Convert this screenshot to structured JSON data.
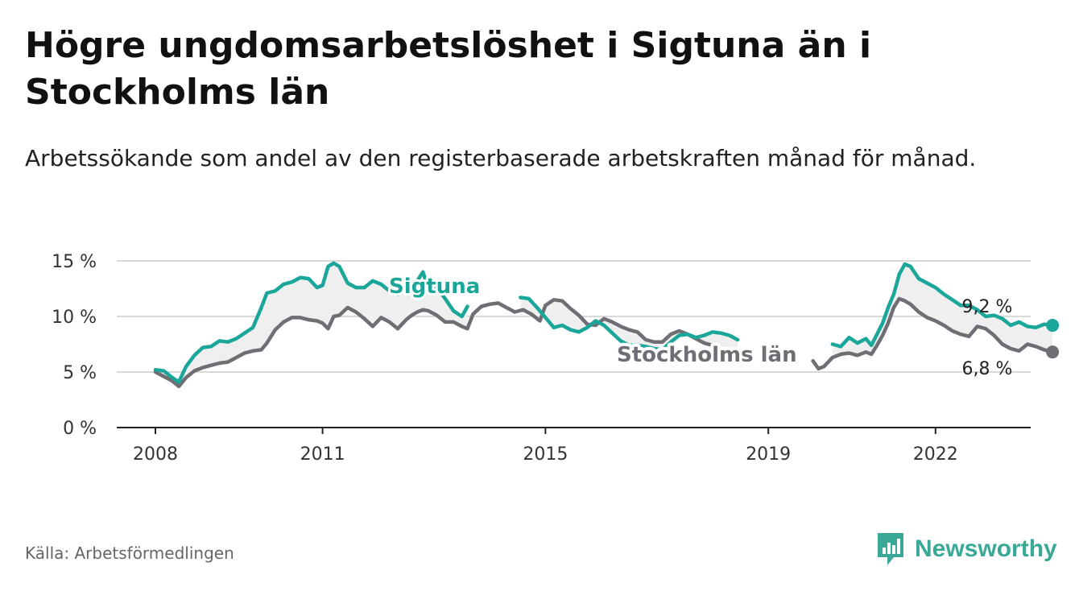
{
  "title": "Högre ungdomsarbetslöshet i Sigtuna än i Stockholms län",
  "subtitle": "Arbetssökande som andel av den registerbaserade arbetskraften månad för månad.",
  "source": "Källa: Arbetsförmedlingen",
  "brand": {
    "name": "Newsworthy",
    "icon": "newsworthy-logo-icon",
    "color": "#3aa896"
  },
  "colors": {
    "sigtuna": "#1aa79a",
    "stockholm": "#6f6e74",
    "fill": "#efefef",
    "grid": "#d9d9d9"
  },
  "chart_data": {
    "type": "line",
    "title": "Högre ungdomsarbetslöshet i Sigtuna än i Stockholms län",
    "ylabel": "",
    "xlabel": "",
    "ylim": [
      0,
      15
    ],
    "xlim": [
      2007.5,
      2024.0
    ],
    "grid": true,
    "yticks": [
      0,
      5,
      10,
      15
    ],
    "ytick_labels": [
      "0 %",
      "5 %",
      "10 %",
      "15 %"
    ],
    "xticks": [
      2008,
      2011,
      2015,
      2019,
      2022
    ],
    "xtick_labels": [
      "2008",
      "2011",
      "2015",
      "2019",
      "2022"
    ],
    "series": [
      {
        "name": "Sigtuna",
        "label": "Sigtuna",
        "end_label": "9,2 %",
        "points": [
          [
            2008.0,
            5.2
          ],
          [
            2008.15,
            5.1
          ],
          [
            2008.3,
            4.5
          ],
          [
            2008.42,
            4.1
          ],
          [
            2008.55,
            5.5
          ],
          [
            2008.7,
            6.5
          ],
          [
            2008.85,
            7.2
          ],
          [
            2009.0,
            7.3
          ],
          [
            2009.15,
            7.8
          ],
          [
            2009.3,
            7.7
          ],
          [
            2009.45,
            8.0
          ],
          [
            2009.6,
            8.5
          ],
          [
            2009.75,
            9.0
          ],
          [
            2009.9,
            10.8
          ],
          [
            2010.0,
            12.1
          ],
          [
            2010.15,
            12.3
          ],
          [
            2010.3,
            12.9
          ],
          [
            2010.45,
            13.1
          ],
          [
            2010.6,
            13.5
          ],
          [
            2010.75,
            13.4
          ],
          [
            2010.9,
            12.6
          ],
          [
            2011.0,
            12.8
          ],
          [
            2011.1,
            14.5
          ],
          [
            2011.2,
            14.8
          ],
          [
            2011.3,
            14.5
          ],
          [
            2011.45,
            13.0
          ],
          [
            2011.6,
            12.6
          ],
          [
            2011.75,
            12.6
          ],
          [
            2011.9,
            13.2
          ],
          [
            2012.05,
            12.9
          ],
          [
            2012.2,
            12.3
          ],
          [
            2012.35,
            12.0
          ],
          [
            2012.5,
            12.5
          ],
          [
            2012.6,
            13.0
          ],
          [
            2012.7,
            13.2
          ],
          [
            2012.8,
            14.0
          ],
          [
            2012.9,
            12.5
          ],
          [
            2013.05,
            12.6
          ],
          [
            2013.2,
            11.6
          ],
          [
            2013.35,
            10.5
          ],
          [
            2013.5,
            10.0
          ],
          [
            2013.6,
            10.9
          ]
        ],
        "points_b": [
          [
            2014.55,
            11.7
          ],
          [
            2014.7,
            11.6
          ],
          [
            2014.85,
            10.8
          ],
          [
            2015.0,
            9.9
          ],
          [
            2015.15,
            9.0
          ],
          [
            2015.3,
            9.2
          ],
          [
            2015.45,
            8.8
          ],
          [
            2015.6,
            8.6
          ],
          [
            2015.75,
            9.0
          ],
          [
            2015.9,
            9.6
          ],
          [
            2016.05,
            9.2
          ],
          [
            2016.2,
            8.5
          ],
          [
            2016.35,
            7.8
          ],
          [
            2016.5,
            7.4
          ],
          [
            2016.65,
            7.4
          ],
          [
            2016.8,
            7.3
          ],
          [
            2016.95,
            7.1
          ],
          [
            2017.1,
            7.0
          ],
          [
            2017.25,
            7.7
          ],
          [
            2017.4,
            8.3
          ],
          [
            2017.55,
            8.4
          ],
          [
            2017.7,
            8.1
          ],
          [
            2017.85,
            8.3
          ],
          [
            2018.0,
            8.6
          ],
          [
            2018.15,
            8.5
          ],
          [
            2018.3,
            8.3
          ],
          [
            2018.45,
            7.9
          ]
        ],
        "points_c": [
          [
            2020.15,
            7.5
          ],
          [
            2020.3,
            7.3
          ],
          [
            2020.45,
            8.1
          ],
          [
            2020.6,
            7.6
          ],
          [
            2020.75,
            8.0
          ],
          [
            2020.85,
            7.4
          ],
          [
            2020.95,
            8.4
          ],
          [
            2021.05,
            9.4
          ],
          [
            2021.15,
            10.8
          ],
          [
            2021.25,
            12.0
          ],
          [
            2021.35,
            13.8
          ],
          [
            2021.45,
            14.7
          ],
          [
            2021.55,
            14.5
          ],
          [
            2021.7,
            13.4
          ],
          [
            2021.85,
            13.0
          ],
          [
            2022.0,
            12.6
          ],
          [
            2022.15,
            12.0
          ],
          [
            2022.3,
            11.5
          ],
          [
            2022.45,
            11.0
          ],
          [
            2022.6,
            11.0
          ],
          [
            2022.75,
            10.6
          ],
          [
            2022.9,
            10.0
          ],
          [
            2023.05,
            10.1
          ],
          [
            2023.2,
            9.8
          ],
          [
            2023.35,
            9.2
          ],
          [
            2023.5,
            9.5
          ],
          [
            2023.65,
            9.1
          ],
          [
            2023.8,
            9.0
          ],
          [
            2023.95,
            9.3
          ],
          [
            2024.1,
            9.2
          ]
        ]
      },
      {
        "name": "Stockholms län",
        "label": "Stockholms län",
        "end_label": "6,8 %",
        "points": [
          [
            2008.0,
            5.0
          ],
          [
            2008.15,
            4.6
          ],
          [
            2008.3,
            4.2
          ],
          [
            2008.42,
            3.7
          ],
          [
            2008.55,
            4.5
          ],
          [
            2008.7,
            5.1
          ],
          [
            2008.85,
            5.4
          ],
          [
            2009.0,
            5.6
          ],
          [
            2009.15,
            5.8
          ],
          [
            2009.3,
            5.9
          ],
          [
            2009.45,
            6.3
          ],
          [
            2009.6,
            6.7
          ],
          [
            2009.75,
            6.9
          ],
          [
            2009.9,
            7.0
          ],
          [
            2010.0,
            7.6
          ],
          [
            2010.15,
            8.8
          ],
          [
            2010.3,
            9.5
          ],
          [
            2010.45,
            9.9
          ],
          [
            2010.6,
            9.9
          ],
          [
            2010.75,
            9.7
          ],
          [
            2010.9,
            9.6
          ],
          [
            2011.0,
            9.4
          ],
          [
            2011.1,
            8.9
          ],
          [
            2011.2,
            10.0
          ],
          [
            2011.3,
            10.1
          ],
          [
            2011.45,
            10.8
          ],
          [
            2011.6,
            10.4
          ],
          [
            2011.75,
            9.8
          ],
          [
            2011.9,
            9.1
          ],
          [
            2012.05,
            9.9
          ],
          [
            2012.2,
            9.5
          ],
          [
            2012.35,
            8.9
          ],
          [
            2012.5,
            9.7
          ],
          [
            2012.6,
            10.1
          ],
          [
            2012.7,
            10.4
          ],
          [
            2012.8,
            10.6
          ],
          [
            2012.9,
            10.5
          ],
          [
            2013.05,
            10.1
          ],
          [
            2013.2,
            9.5
          ],
          [
            2013.35,
            9.5
          ],
          [
            2013.5,
            9.1
          ],
          [
            2013.6,
            8.9
          ],
          [
            2013.7,
            10.2
          ],
          [
            2013.85,
            10.9
          ],
          [
            2014.0,
            11.1
          ],
          [
            2014.15,
            11.2
          ],
          [
            2014.3,
            10.8
          ],
          [
            2014.45,
            10.4
          ],
          [
            2014.6,
            10.6
          ],
          [
            2014.75,
            10.2
          ],
          [
            2014.9,
            9.6
          ],
          [
            2015.0,
            11.0
          ],
          [
            2015.15,
            11.5
          ],
          [
            2015.3,
            11.4
          ],
          [
            2015.45,
            10.7
          ],
          [
            2015.6,
            10.1
          ],
          [
            2015.75,
            9.3
          ],
          [
            2015.9,
            9.2
          ],
          [
            2016.05,
            9.8
          ],
          [
            2016.2,
            9.5
          ],
          [
            2016.35,
            9.1
          ],
          [
            2016.5,
            8.8
          ],
          [
            2016.65,
            8.6
          ],
          [
            2016.8,
            7.9
          ],
          [
            2016.95,
            7.7
          ],
          [
            2017.1,
            7.7
          ],
          [
            2017.25,
            8.4
          ],
          [
            2017.4,
            8.7
          ],
          [
            2017.55,
            8.4
          ],
          [
            2017.7,
            8.0
          ],
          [
            2017.85,
            7.6
          ],
          [
            2018.0,
            7.4
          ]
        ],
        "points_b": [
          [
            2019.8,
            6.0
          ],
          [
            2019.9,
            5.3
          ],
          [
            2020.0,
            5.5
          ],
          [
            2020.15,
            6.3
          ],
          [
            2020.3,
            6.6
          ],
          [
            2020.45,
            6.7
          ],
          [
            2020.6,
            6.5
          ],
          [
            2020.75,
            6.8
          ],
          [
            2020.85,
            6.6
          ],
          [
            2020.95,
            7.4
          ],
          [
            2021.05,
            8.3
          ],
          [
            2021.15,
            9.4
          ],
          [
            2021.25,
            10.8
          ],
          [
            2021.35,
            11.6
          ],
          [
            2021.45,
            11.4
          ],
          [
            2021.55,
            11.1
          ],
          [
            2021.7,
            10.4
          ],
          [
            2021.85,
            9.9
          ],
          [
            2022.0,
            9.6
          ],
          [
            2022.15,
            9.2
          ],
          [
            2022.3,
            8.7
          ],
          [
            2022.45,
            8.4
          ],
          [
            2022.6,
            8.2
          ],
          [
            2022.75,
            9.1
          ],
          [
            2022.9,
            8.9
          ],
          [
            2023.05,
            8.3
          ],
          [
            2023.2,
            7.5
          ],
          [
            2023.35,
            7.1
          ],
          [
            2023.5,
            6.9
          ],
          [
            2023.65,
            7.5
          ],
          [
            2023.8,
            7.3
          ],
          [
            2023.95,
            7.0
          ],
          [
            2024.1,
            6.8
          ]
        ]
      }
    ]
  }
}
